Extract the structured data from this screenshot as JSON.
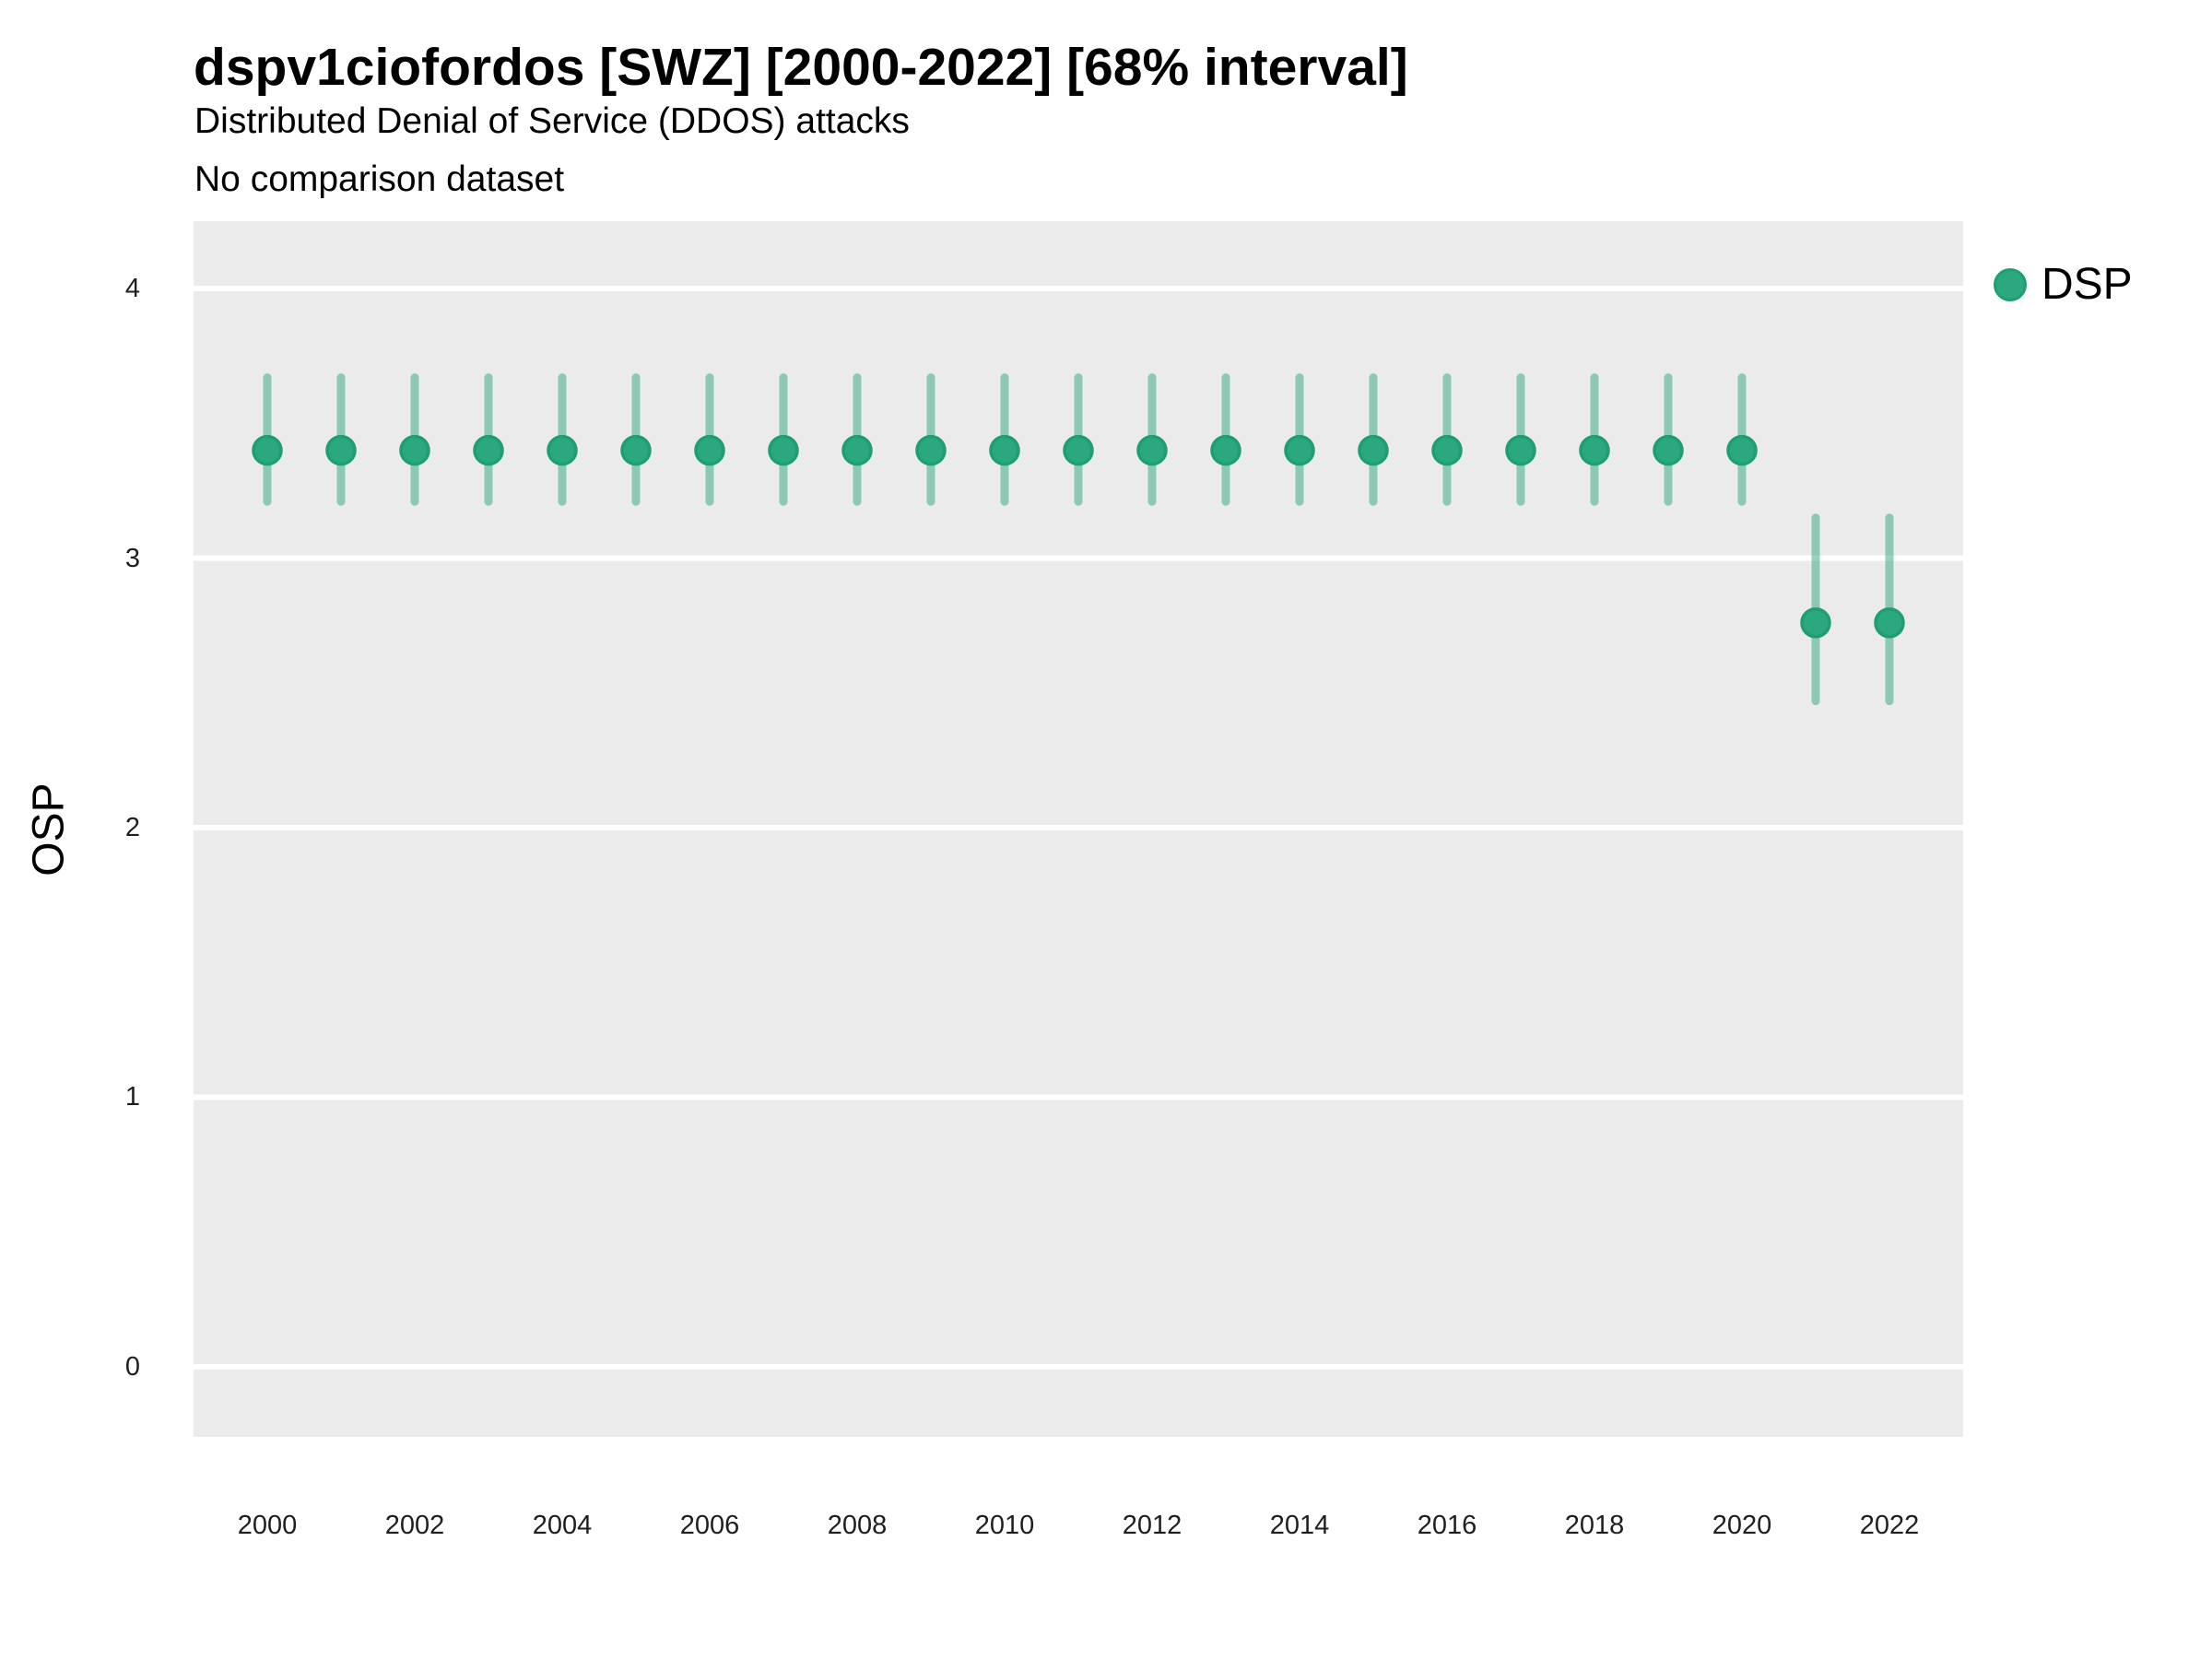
{
  "header": {
    "title": "dspv1ciofordos [SWZ] [2000-2022] [68% interval]",
    "subtitle": "Distributed Denial of Service (DDOS) attacks",
    "comparison_note": "No comparison dataset"
  },
  "axes": {
    "y_title": "OSP"
  },
  "legend": {
    "items": [
      {
        "label": "DSP",
        "color": "#2BA87F"
      }
    ]
  },
  "colors": {
    "point_fill": "#2BA87F",
    "point_stroke": "#1F9E74",
    "interval_line": "rgba(43,168,127,0.5)",
    "panel_background": "#EBEBEB",
    "gridline": "#FFFFFF",
    "title_text": "#000000",
    "tick_text": "#1F1F1F"
  },
  "chart_data": {
    "type": "scatter",
    "mark": "point-interval",
    "interval": "68%",
    "title": "dspv1ciofordos [SWZ] [2000-2022] [68% interval]",
    "subtitle": "Distributed Denial of Service (DDOS) attacks",
    "note": "No comparison dataset",
    "xlabel": "",
    "ylabel": "OSP",
    "legend_position": "right",
    "grid": "horizontal-major-only",
    "xlim": [
      1999,
      2023
    ],
    "ylim": [
      -0.26,
      4.25
    ],
    "xticks": [
      2000,
      2002,
      2004,
      2006,
      2008,
      2010,
      2012,
      2014,
      2016,
      2018,
      2020,
      2022
    ],
    "yticks": [
      0,
      1,
      2,
      3,
      4
    ],
    "series": [
      {
        "name": "DSP",
        "points": [
          {
            "x": 2000,
            "y": 3.4,
            "lo": 3.21,
            "hi": 3.67
          },
          {
            "x": 2001,
            "y": 3.4,
            "lo": 3.21,
            "hi": 3.67
          },
          {
            "x": 2002,
            "y": 3.4,
            "lo": 3.21,
            "hi": 3.67
          },
          {
            "x": 2003,
            "y": 3.4,
            "lo": 3.21,
            "hi": 3.67
          },
          {
            "x": 2004,
            "y": 3.4,
            "lo": 3.21,
            "hi": 3.67
          },
          {
            "x": 2005,
            "y": 3.4,
            "lo": 3.21,
            "hi": 3.67
          },
          {
            "x": 2006,
            "y": 3.4,
            "lo": 3.21,
            "hi": 3.67
          },
          {
            "x": 2007,
            "y": 3.4,
            "lo": 3.21,
            "hi": 3.67
          },
          {
            "x": 2008,
            "y": 3.4,
            "lo": 3.21,
            "hi": 3.67
          },
          {
            "x": 2009,
            "y": 3.4,
            "lo": 3.21,
            "hi": 3.67
          },
          {
            "x": 2010,
            "y": 3.4,
            "lo": 3.21,
            "hi": 3.67
          },
          {
            "x": 2011,
            "y": 3.4,
            "lo": 3.21,
            "hi": 3.67
          },
          {
            "x": 2012,
            "y": 3.4,
            "lo": 3.21,
            "hi": 3.67
          },
          {
            "x": 2013,
            "y": 3.4,
            "lo": 3.21,
            "hi": 3.67
          },
          {
            "x": 2014,
            "y": 3.4,
            "lo": 3.21,
            "hi": 3.67
          },
          {
            "x": 2015,
            "y": 3.4,
            "lo": 3.21,
            "hi": 3.67
          },
          {
            "x": 2016,
            "y": 3.4,
            "lo": 3.21,
            "hi": 3.67
          },
          {
            "x": 2017,
            "y": 3.4,
            "lo": 3.21,
            "hi": 3.67
          },
          {
            "x": 2018,
            "y": 3.4,
            "lo": 3.21,
            "hi": 3.67
          },
          {
            "x": 2019,
            "y": 3.4,
            "lo": 3.21,
            "hi": 3.67
          },
          {
            "x": 2020,
            "y": 3.4,
            "lo": 3.21,
            "hi": 3.67
          },
          {
            "x": 2021,
            "y": 2.76,
            "lo": 2.47,
            "hi": 3.15
          },
          {
            "x": 2022,
            "y": 2.76,
            "lo": 2.47,
            "hi": 3.15
          }
        ]
      }
    ]
  }
}
